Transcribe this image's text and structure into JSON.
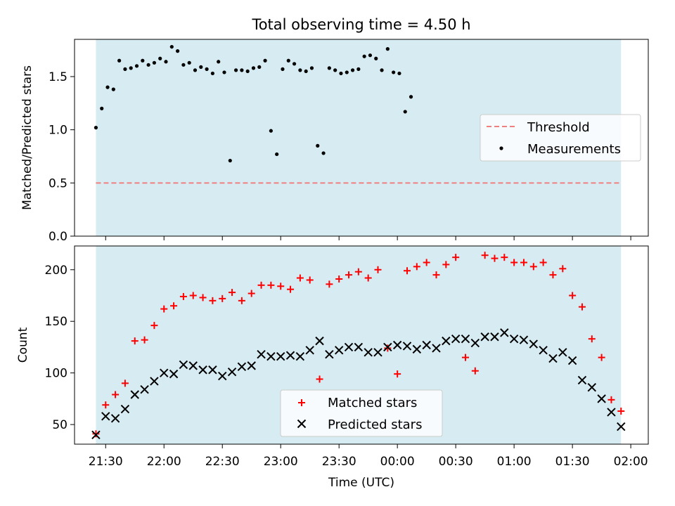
{
  "figure": {
    "title": "Total observing time = 4.50 h"
  },
  "colors": {
    "shade": "#add8e6",
    "threshold": "#f08080",
    "matched": "#ff0000",
    "predicted": "#000000",
    "measurements": "#000000"
  },
  "chart_data": [
    {
      "type": "scatter",
      "panel": "top",
      "ylabel": "Matched/Predicted stars",
      "xlabel": "",
      "x_unit": "time (UTC)",
      "xlim": [
        "21:14",
        "02:09"
      ],
      "ylim": [
        0,
        1.85
      ],
      "yticks": [
        0.0,
        0.5,
        1.0,
        1.5
      ],
      "ytick_labels": [
        "0.0",
        "0.5",
        "1.0",
        "1.5"
      ],
      "shaded_interval": [
        "21:25",
        "01:55"
      ],
      "threshold": {
        "name": "Threshold",
        "value": 0.5,
        "x_range": [
          "21:25",
          "01:55"
        ]
      },
      "legend": {
        "placement": "right",
        "entries": [
          "Threshold",
          "Measurements"
        ]
      },
      "series": [
        {
          "name": "Measurements",
          "marker": "dot",
          "points": [
            [
              "21:25",
              1.02
            ],
            [
              "21:28",
              1.2
            ],
            [
              "21:31",
              1.4
            ],
            [
              "21:34",
              1.38
            ],
            [
              "21:37",
              1.65
            ],
            [
              "21:40",
              1.57
            ],
            [
              "21:43",
              1.58
            ],
            [
              "21:46",
              1.6
            ],
            [
              "21:49",
              1.65
            ],
            [
              "21:52",
              1.61
            ],
            [
              "21:55",
              1.63
            ],
            [
              "21:58",
              1.67
            ],
            [
              "22:01",
              1.64
            ],
            [
              "22:04",
              1.78
            ],
            [
              "22:07",
              1.74
            ],
            [
              "22:10",
              1.61
            ],
            [
              "22:13",
              1.63
            ],
            [
              "22:16",
              1.56
            ],
            [
              "22:19",
              1.59
            ],
            [
              "22:22",
              1.57
            ],
            [
              "22:25",
              1.53
            ],
            [
              "22:28",
              1.64
            ],
            [
              "22:31",
              1.54
            ],
            [
              "22:34",
              0.71
            ],
            [
              "22:37",
              1.56
            ],
            [
              "22:40",
              1.56
            ],
            [
              "22:43",
              1.55
            ],
            [
              "22:46",
              1.58
            ],
            [
              "22:49",
              1.59
            ],
            [
              "22:52",
              1.65
            ],
            [
              "22:55",
              0.99
            ],
            [
              "22:58",
              0.77
            ],
            [
              "23:01",
              1.57
            ],
            [
              "23:04",
              1.65
            ],
            [
              "23:07",
              1.62
            ],
            [
              "23:10",
              1.56
            ],
            [
              "23:13",
              1.55
            ],
            [
              "23:16",
              1.58
            ],
            [
              "23:19",
              0.85
            ],
            [
              "23:22",
              0.78
            ],
            [
              "23:25",
              1.58
            ],
            [
              "23:28",
              1.56
            ],
            [
              "23:31",
              1.53
            ],
            [
              "23:34",
              1.54
            ],
            [
              "23:37",
              1.56
            ],
            [
              "23:40",
              1.57
            ],
            [
              "23:43",
              1.69
            ],
            [
              "23:46",
              1.7
            ],
            [
              "23:49",
              1.67
            ],
            [
              "23:52",
              1.56
            ],
            [
              "23:55",
              1.76
            ],
            [
              "23:58",
              1.54
            ],
            [
              "00:01",
              1.53
            ],
            [
              "00:04",
              1.17
            ],
            [
              "00:07",
              1.31
            ]
          ]
        }
      ]
    },
    {
      "type": "scatter",
      "panel": "bottom",
      "ylabel": "Count",
      "xlabel": "Time (UTC)",
      "xlim": [
        "21:14",
        "02:09"
      ],
      "xticks": [
        "21:30",
        "22:00",
        "22:30",
        "23:00",
        "23:30",
        "00:00",
        "00:30",
        "01:00",
        "01:30",
        "02:00"
      ],
      "ylim": [
        31,
        223
      ],
      "yticks": [
        50,
        100,
        150,
        200
      ],
      "ytick_labels": [
        "50",
        "100",
        "150",
        "200"
      ],
      "shaded_interval": [
        "21:25",
        "01:55"
      ],
      "legend": {
        "placement": "bottom-center",
        "entries": [
          "Matched stars",
          "Predicted stars"
        ]
      },
      "series": [
        {
          "name": "Matched stars",
          "marker": "plus",
          "points": [
            [
              "21:25",
              41
            ],
            [
              "21:30",
              69
            ],
            [
              "21:35",
              79
            ],
            [
              "21:40",
              90
            ],
            [
              "21:45",
              131
            ],
            [
              "21:50",
              132
            ],
            [
              "21:55",
              146
            ],
            [
              "22:00",
              162
            ],
            [
              "22:05",
              165
            ],
            [
              "22:10",
              174
            ],
            [
              "22:15",
              175
            ],
            [
              "22:20",
              173
            ],
            [
              "22:25",
              170
            ],
            [
              "22:30",
              172
            ],
            [
              "22:35",
              178
            ],
            [
              "22:40",
              170
            ],
            [
              "22:45",
              177
            ],
            [
              "22:50",
              185
            ],
            [
              "22:55",
              185
            ],
            [
              "23:00",
              184
            ],
            [
              "23:05",
              181
            ],
            [
              "23:10",
              192
            ],
            [
              "23:15",
              190
            ],
            [
              "23:20",
              94
            ],
            [
              "23:25",
              186
            ],
            [
              "23:30",
              191
            ],
            [
              "23:35",
              195
            ],
            [
              "23:40",
              198
            ],
            [
              "23:45",
              192
            ],
            [
              "23:50",
              200
            ],
            [
              "23:55",
              124
            ],
            [
              "00:00",
              99
            ],
            [
              "00:05",
              199
            ],
            [
              "00:10",
              203
            ],
            [
              "00:15",
              207
            ],
            [
              "00:20",
              195
            ],
            [
              "00:25",
              205
            ],
            [
              "00:30",
              212
            ],
            [
              "00:35",
              115
            ],
            [
              "00:40",
              102
            ],
            [
              "00:45",
              214
            ],
            [
              "00:50",
              211
            ],
            [
              "00:55",
              212
            ],
            [
              "01:00",
              207
            ],
            [
              "01:05",
              207
            ],
            [
              "01:10",
              203
            ],
            [
              "01:15",
              207
            ],
            [
              "01:20",
              195
            ],
            [
              "01:25",
              201
            ],
            [
              "01:30",
              175
            ],
            [
              "01:35",
              164
            ],
            [
              "01:40",
              133
            ],
            [
              "01:45",
              115
            ],
            [
              "01:50",
              74
            ],
            [
              "01:55",
              63
            ]
          ]
        },
        {
          "name": "Predicted stars",
          "marker": "x",
          "points": [
            [
              "21:25",
              40
            ],
            [
              "21:30",
              58
            ],
            [
              "21:35",
              56
            ],
            [
              "21:40",
              65
            ],
            [
              "21:45",
              79
            ],
            [
              "21:50",
              84
            ],
            [
              "21:55",
              92
            ],
            [
              "22:00",
              100
            ],
            [
              "22:05",
              99
            ],
            [
              "22:10",
              108
            ],
            [
              "22:15",
              107
            ],
            [
              "22:20",
              103
            ],
            [
              "22:25",
              103
            ],
            [
              "22:30",
              97
            ],
            [
              "22:35",
              101
            ],
            [
              "22:40",
              106
            ],
            [
              "22:45",
              107
            ],
            [
              "22:50",
              118
            ],
            [
              "22:55",
              116
            ],
            [
              "23:00",
              116
            ],
            [
              "23:05",
              117
            ],
            [
              "23:10",
              116
            ],
            [
              "23:15",
              122
            ],
            [
              "23:20",
              131
            ],
            [
              "23:25",
              118
            ],
            [
              "23:30",
              122
            ],
            [
              "23:35",
              125
            ],
            [
              "23:40",
              125
            ],
            [
              "23:45",
              120
            ],
            [
              "23:50",
              120
            ],
            [
              "23:55",
              125
            ],
            [
              "00:00",
              127
            ],
            [
              "00:05",
              126
            ],
            [
              "00:10",
              123
            ],
            [
              "00:15",
              127
            ],
            [
              "00:20",
              124
            ],
            [
              "00:25",
              131
            ],
            [
              "00:30",
              133
            ],
            [
              "00:35",
              133
            ],
            [
              "00:40",
              129
            ],
            [
              "00:45",
              135
            ],
            [
              "00:50",
              135
            ],
            [
              "00:55",
              139
            ],
            [
              "01:00",
              133
            ],
            [
              "01:05",
              132
            ],
            [
              "01:10",
              128
            ],
            [
              "01:15",
              122
            ],
            [
              "01:20",
              114
            ],
            [
              "01:25",
              120
            ],
            [
              "01:30",
              112
            ],
            [
              "01:35",
              93
            ],
            [
              "01:40",
              86
            ],
            [
              "01:45",
              75
            ],
            [
              "01:50",
              62
            ],
            [
              "01:55",
              48
            ]
          ]
        }
      ]
    }
  ]
}
